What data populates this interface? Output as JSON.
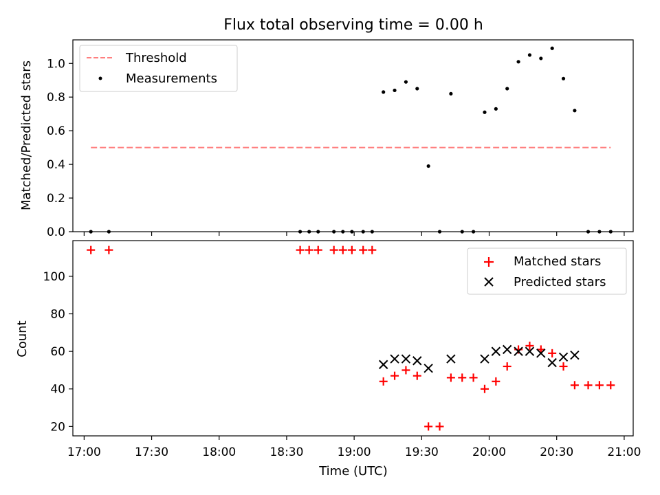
{
  "title": "Flux total observing time = 0.00 h",
  "chart_data": [
    {
      "type": "scatter",
      "panel": "top",
      "ylabel": "Matched/Predicted stars",
      "xlabel": "",
      "xlim": [
        "16:55",
        "21:04"
      ],
      "ylim": [
        0,
        1.14
      ],
      "yticks": [
        0.0,
        0.2,
        0.4,
        0.6,
        0.8,
        1.0
      ],
      "ytick_labels": [
        "0.0",
        "0.2",
        "0.4",
        "0.6",
        "0.8",
        "1.0"
      ],
      "xticks": [
        "17:00",
        "17:30",
        "18:00",
        "18:30",
        "19:00",
        "19:30",
        "20:00",
        "20:30",
        "21:00"
      ],
      "grid": false,
      "legend_position": "upper-left",
      "legend": [
        "Threshold",
        "Measurements"
      ],
      "threshold": {
        "name": "Threshold",
        "value": 0.5,
        "x_start": "17:03",
        "x_end": "20:54",
        "color": "#ff7f7f",
        "style": "dashed"
      },
      "series": [
        {
          "name": "Measurements",
          "color": "#000000",
          "marker": "dot",
          "points": [
            [
              "17:03",
              0
            ],
            [
              "17:11",
              0
            ],
            [
              "18:36",
              0
            ],
            [
              "18:40",
              0
            ],
            [
              "18:44",
              0
            ],
            [
              "18:51",
              0
            ],
            [
              "18:55",
              0
            ],
            [
              "18:59",
              0
            ],
            [
              "19:04",
              0
            ],
            [
              "19:08",
              0
            ],
            [
              "19:13",
              0.83
            ],
            [
              "19:18",
              0.84
            ],
            [
              "19:23",
              0.89
            ],
            [
              "19:28",
              0.85
            ],
            [
              "19:33",
              0.39
            ],
            [
              "19:38",
              0
            ],
            [
              "19:43",
              0.82
            ],
            [
              "19:48",
              0
            ],
            [
              "19:53",
              0
            ],
            [
              "19:58",
              0.71
            ],
            [
              "20:03",
              0.73
            ],
            [
              "20:08",
              0.85
            ],
            [
              "20:13",
              1.01
            ],
            [
              "20:18",
              1.05
            ],
            [
              "20:23",
              1.03
            ],
            [
              "20:28",
              1.09
            ],
            [
              "20:33",
              0.91
            ],
            [
              "20:38",
              0.72
            ],
            [
              "20:44",
              0
            ],
            [
              "20:49",
              0
            ],
            [
              "20:54",
              0
            ]
          ]
        }
      ]
    },
    {
      "type": "scatter",
      "panel": "bottom",
      "ylabel": "Count",
      "xlabel": "Time (UTC)",
      "xlim": [
        "16:55",
        "21:04"
      ],
      "ylim": [
        15,
        119
      ],
      "yticks": [
        20,
        40,
        60,
        80,
        100
      ],
      "ytick_labels": [
        "20",
        "40",
        "60",
        "80",
        "100"
      ],
      "xticks": [
        "17:00",
        "17:30",
        "18:00",
        "18:30",
        "19:00",
        "19:30",
        "20:00",
        "20:30",
        "21:00"
      ],
      "xtick_labels": [
        "17:00",
        "17:30",
        "18:00",
        "18:30",
        "19:00",
        "19:30",
        "20:00",
        "20:30",
        "21:00"
      ],
      "grid": false,
      "legend_position": "upper-right",
      "legend": [
        "Matched stars",
        "Predicted stars"
      ],
      "series": [
        {
          "name": "Matched stars",
          "color": "#ff0000",
          "marker": "plus",
          "points": [
            [
              "17:03",
              114
            ],
            [
              "17:11",
              114
            ],
            [
              "18:36",
              114
            ],
            [
              "18:40",
              114
            ],
            [
              "18:44",
              114
            ],
            [
              "18:51",
              114
            ],
            [
              "18:55",
              114
            ],
            [
              "18:59",
              114
            ],
            [
              "19:04",
              114
            ],
            [
              "19:08",
              114
            ],
            [
              "19:13",
              44
            ],
            [
              "19:18",
              47
            ],
            [
              "19:23",
              50
            ],
            [
              "19:28",
              47
            ],
            [
              "19:33",
              20
            ],
            [
              "19:38",
              20
            ],
            [
              "19:43",
              46
            ],
            [
              "19:48",
              46
            ],
            [
              "19:53",
              46
            ],
            [
              "19:58",
              40
            ],
            [
              "20:03",
              44
            ],
            [
              "20:08",
              52
            ],
            [
              "20:13",
              61
            ],
            [
              "20:18",
              63
            ],
            [
              "20:23",
              61
            ],
            [
              "20:28",
              59
            ],
            [
              "20:33",
              52
            ],
            [
              "20:38",
              42
            ],
            [
              "20:44",
              42
            ],
            [
              "20:49",
              42
            ],
            [
              "20:54",
              42
            ]
          ]
        },
        {
          "name": "Predicted stars",
          "color": "#000000",
          "marker": "x",
          "points": [
            [
              "19:13",
              53
            ],
            [
              "19:18",
              56
            ],
            [
              "19:23",
              56
            ],
            [
              "19:28",
              55
            ],
            [
              "19:33",
              51
            ],
            [
              "19:43",
              56
            ],
            [
              "19:58",
              56
            ],
            [
              "20:03",
              60
            ],
            [
              "20:08",
              61
            ],
            [
              "20:13",
              60
            ],
            [
              "20:18",
              60
            ],
            [
              "20:23",
              59
            ],
            [
              "20:28",
              54
            ],
            [
              "20:33",
              57
            ],
            [
              "20:38",
              58
            ]
          ]
        }
      ]
    }
  ]
}
